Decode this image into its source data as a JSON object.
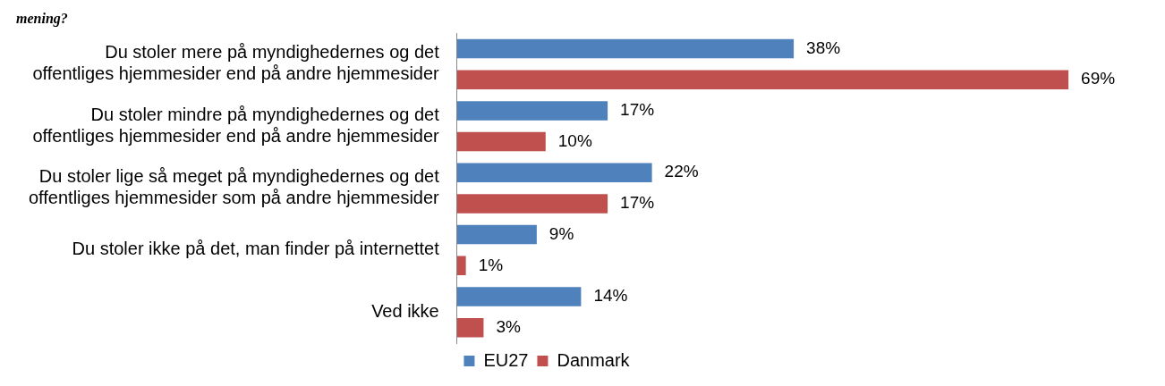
{
  "chart_data": {
    "type": "bar",
    "orientation": "horizontal",
    "title": "mening?",
    "categories": [
      "Du stoler mere på myndighedernes og det offentliges hjemmesider end på andre hjemmesider",
      "Du stoler mindre på myndighedernes og det offentliges hjemmesider end på andre hjemmesider",
      "Du stoler lige så meget på myndighedernes og det offentliges hjemmesider som på andre hjemmesider",
      "Du stoler ikke på det, man finder på internettet",
      "Ved ikke"
    ],
    "series": [
      {
        "name": "EU27",
        "color": "#4f81bd",
        "values": [
          38,
          17,
          22,
          9,
          14
        ],
        "value_labels": [
          "38%",
          "17%",
          "22%",
          "9%",
          "14%"
        ]
      },
      {
        "name": "Danmark",
        "color": "#c0504d",
        "values": [
          69,
          10,
          17,
          1,
          3
        ],
        "value_labels": [
          "69%",
          "10%",
          "17%",
          "1%",
          "3%"
        ]
      }
    ],
    "legend": "bottom",
    "grid": false
  }
}
